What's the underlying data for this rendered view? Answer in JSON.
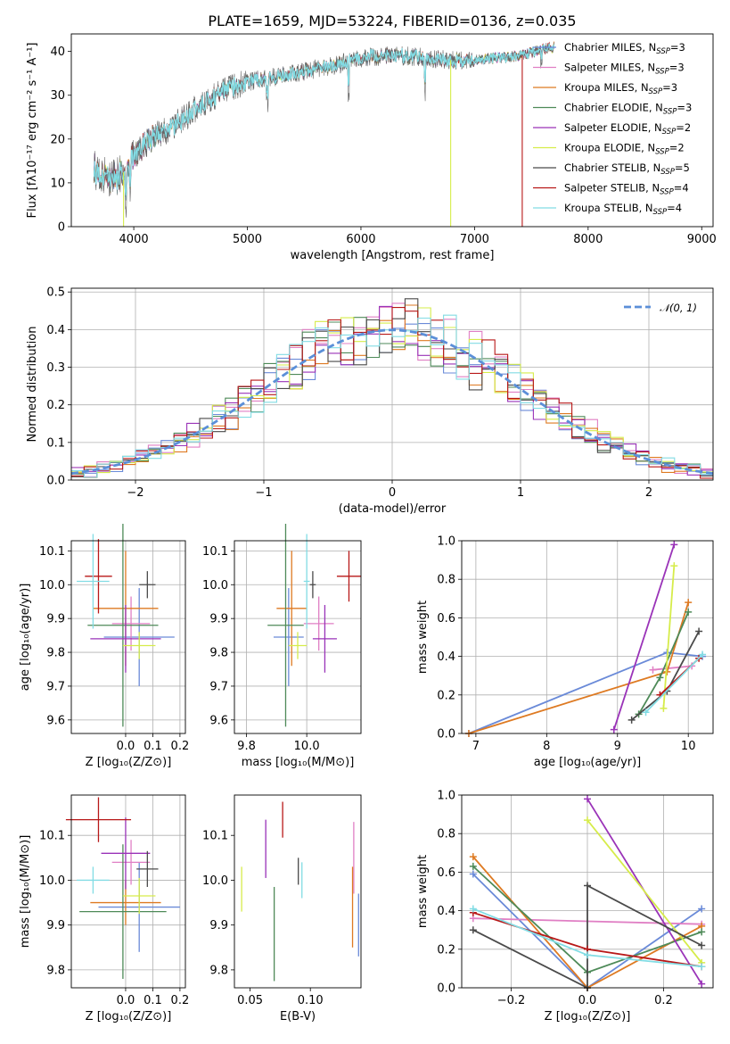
{
  "figure_title": "PLATE=1659, MJD=53224, FIBERID=0136, z=0.035",
  "colors": {
    "Chabrier MILES": "#6a8ad8",
    "Salpeter MILES": "#e07fc4",
    "Kroupa MILES": "#de7a22",
    "Chabrier ELODIE": "#4e8a58",
    "Salpeter ELODIE": "#9a33b8",
    "Kroupa ELODIE": "#d6ec4a",
    "Chabrier STELIB": "#4a4a4a",
    "Salpeter STELIB": "#b81818",
    "Kroupa STELIB": "#82dce4",
    "normal": "#5b8fd8"
  },
  "models": [
    "Chabrier MILES",
    "Salpeter MILES",
    "Kroupa MILES",
    "Chabrier ELODIE",
    "Salpeter ELODIE",
    "Kroupa ELODIE",
    "Chabrier STELIB",
    "Salpeter STELIB",
    "Kroupa STELIB"
  ],
  "chart_data": [
    {
      "id": "spectrum",
      "type": "line",
      "title": "PLATE=1659, MJD=53224, FIBERID=0136, z=0.035",
      "xlabel": "wavelength [Angstrom, rest frame]",
      "ylabel": "Flux [fλ10⁻¹⁷ erg cm⁻² s⁻¹ A⁻¹]",
      "xlim": [
        3450,
        9100
      ],
      "ylim": [
        0,
        44
      ],
      "xticks": [
        4000,
        5000,
        6000,
        7000,
        8000,
        9000
      ],
      "yticks": [
        0,
        10,
        20,
        30,
        40
      ],
      "grid": false,
      "legend_position": "right",
      "legend": [
        {
          "name": "Chabrier MILES",
          "nssp": "3"
        },
        {
          "name": "Salpeter MILES",
          "nssp": "3"
        },
        {
          "name": "Kroupa MILES",
          "nssp": "3"
        },
        {
          "name": "Chabrier ELODIE",
          "nssp": "3"
        },
        {
          "name": "Salpeter ELODIE",
          "nssp": "2"
        },
        {
          "name": "Kroupa ELODIE",
          "nssp": "2"
        },
        {
          "name": "Chabrier STELIB",
          "nssp": "5"
        },
        {
          "name": "Salpeter STELIB",
          "nssp": "4"
        },
        {
          "name": "Kroupa STELIB",
          "nssp": "4"
        }
      ],
      "continuum": {
        "x": [
          3650,
          3800,
          3900,
          4000,
          4100,
          4200,
          4300,
          4400,
          4500,
          4600,
          4800,
          5000,
          5200,
          5400,
          5600,
          5800,
          6000,
          6200,
          6400,
          6600,
          6800,
          7000,
          7200,
          7400,
          7600,
          7700
        ],
        "y": [
          13,
          11,
          12,
          16,
          19,
          21,
          22,
          24,
          26,
          28,
          31,
          33,
          34,
          35,
          36,
          37,
          38.5,
          39,
          39,
          38.5,
          38,
          38,
          38.5,
          39,
          40.5,
          41
        ]
      },
      "dropouts": [
        {
          "model": "Kroupa ELODIE",
          "x": 6790
        },
        {
          "model": "Salpeter STELIB",
          "x": 7420
        },
        {
          "model": "Kroupa ELODIE",
          "x": 3910
        }
      ]
    },
    {
      "id": "residuals",
      "type": "histogram",
      "xlabel": "(data-model)/error",
      "ylabel": "Normed distribution",
      "xlim": [
        -2.5,
        2.5
      ],
      "ylim": [
        0,
        0.51
      ],
      "xticks": [
        -2,
        -1,
        0,
        1,
        2
      ],
      "yticks": [
        0.0,
        0.1,
        0.2,
        0.3,
        0.4,
        0.5
      ],
      "grid": true,
      "bin_width": 0.1,
      "legend": [
        {
          "name": "𝒩(0, 1)",
          "style": "dashed"
        }
      ],
      "legend_position": "top-right"
    },
    {
      "id": "age-vs-Z",
      "type": "errorbar",
      "xlabel": "Z [log₁₀(Z/Z⊙)]",
      "ylabel": "age  [log₁₀(age/yr)]",
      "xlim": [
        -0.2,
        0.22
      ],
      "ylim": [
        9.56,
        10.13
      ],
      "xticks": [
        0.0,
        0.1,
        0.2
      ],
      "yticks": [
        9.6,
        9.7,
        9.8,
        9.9,
        10.0,
        10.1
      ],
      "grid": true,
      "points": [
        {
          "model": "Chabrier MILES",
          "x": 0.05,
          "xerr": 0.13,
          "y": 9.845,
          "yerr": 0.145
        },
        {
          "model": "Salpeter MILES",
          "x": 0.02,
          "xerr": 0.07,
          "y": 9.885,
          "yerr": 0.08
        },
        {
          "model": "Kroupa MILES",
          "x": 0.0,
          "xerr": 0.12,
          "y": 9.93,
          "yerr": 0.17
        },
        {
          "model": "Chabrier ELODIE",
          "x": -0.01,
          "xerr": 0.13,
          "y": 9.88,
          "yerr": 0.3
        },
        {
          "model": "Salpeter ELODIE",
          "x": 0.0,
          "xerr": 0.13,
          "y": 9.84,
          "yerr": 0.1
        },
        {
          "model": "Kroupa ELODIE",
          "x": 0.05,
          "xerr": 0.06,
          "y": 9.82,
          "yerr": 0.04
        },
        {
          "model": "Chabrier STELIB",
          "x": 0.08,
          "xerr": 0.03,
          "y": 10.0,
          "yerr": 0.04
        },
        {
          "model": "Salpeter STELIB",
          "x": -0.1,
          "xerr": 0.05,
          "y": 10.025,
          "yerr": 0.11
        },
        {
          "model": "Kroupa STELIB",
          "x": -0.12,
          "xerr": 0.06,
          "y": 10.01,
          "yerr": 0.14
        }
      ]
    },
    {
      "id": "age-vs-mass",
      "type": "errorbar",
      "xlabel": "mass [log₁₀(M/M⊙)]",
      "ylabel": "",
      "xlim": [
        9.76,
        10.18
      ],
      "ylim": [
        9.56,
        10.13
      ],
      "xticks": [
        9.8,
        10.0
      ],
      "yticks": [
        9.6,
        9.7,
        9.8,
        9.9,
        10.0,
        10.1
      ],
      "grid": true,
      "points": [
        {
          "model": "Chabrier MILES",
          "x": 9.94,
          "xerr": 0.05,
          "y": 9.845,
          "yerr": 0.145
        },
        {
          "model": "Salpeter MILES",
          "x": 10.04,
          "xerr": 0.05,
          "y": 9.885,
          "yerr": 0.08
        },
        {
          "model": "Kroupa MILES",
          "x": 9.95,
          "xerr": 0.05,
          "y": 9.93,
          "yerr": 0.17
        },
        {
          "model": "Chabrier ELODIE",
          "x": 9.93,
          "xerr": 0.06,
          "y": 9.88,
          "yerr": 0.3
        },
        {
          "model": "Salpeter ELODIE",
          "x": 10.06,
          "xerr": 0.04,
          "y": 9.84,
          "yerr": 0.1
        },
        {
          "model": "Kroupa ELODIE",
          "x": 9.97,
          "xerr": 0.03,
          "y": 9.82,
          "yerr": 0.04
        },
        {
          "model": "Chabrier STELIB",
          "x": 10.02,
          "xerr": 0.01,
          "y": 10.0,
          "yerr": 0.04
        },
        {
          "model": "Salpeter STELIB",
          "x": 10.14,
          "xerr": 0.04,
          "y": 10.025,
          "yerr": 0.075
        },
        {
          "model": "Kroupa STELIB",
          "x": 10.0,
          "xerr": 0.01,
          "y": 10.01,
          "yerr": 0.14
        }
      ]
    },
    {
      "id": "weight-vs-age",
      "type": "line",
      "xlabel": "age  [log₁₀(age/yr)]",
      "ylabel": "mass weight",
      "xlim": [
        6.8,
        10.35
      ],
      "ylim": [
        0,
        1
      ],
      "xticks": [
        7,
        8,
        9,
        10
      ],
      "yticks": [
        0.0,
        0.2,
        0.4,
        0.6,
        0.8,
        1.0
      ],
      "grid": true,
      "series": [
        {
          "model": "Chabrier MILES",
          "x": [
            6.9,
            9.7,
            10.2
          ],
          "y": [
            0.0,
            0.42,
            0.4
          ]
        },
        {
          "model": "Salpeter MILES",
          "x": [
            9.5,
            10.05
          ],
          "y": [
            0.33,
            0.35
          ]
        },
        {
          "model": "Kroupa MILES",
          "x": [
            6.9,
            9.7,
            10.0
          ],
          "y": [
            0.0,
            0.32,
            0.68
          ]
        },
        {
          "model": "Chabrier ELODIE",
          "x": [
            9.3,
            9.6,
            10.0
          ],
          "y": [
            0.1,
            0.29,
            0.63
          ]
        },
        {
          "model": "Salpeter ELODIE",
          "x": [
            8.95,
            9.8
          ],
          "y": [
            0.02,
            0.98
          ]
        },
        {
          "model": "Kroupa ELODIE",
          "x": [
            9.65,
            9.8
          ],
          "y": [
            0.13,
            0.87
          ]
        },
        {
          "model": "Chabrier STELIB",
          "x": [
            9.2,
            9.7,
            10.15
          ],
          "y": [
            0.07,
            0.22,
            0.53
          ]
        },
        {
          "model": "Salpeter STELIB",
          "x": [
            9.6,
            10.15
          ],
          "y": [
            0.2,
            0.39
          ]
        },
        {
          "model": "Kroupa STELIB",
          "x": [
            9.4,
            10.2
          ],
          "y": [
            0.11,
            0.41
          ]
        }
      ]
    },
    {
      "id": "mass-vs-Z",
      "type": "errorbar",
      "xlabel": "Z [log₁₀(Z/Z⊙)]",
      "ylabel": "mass [log₁₀(M/M⊙)]",
      "xlim": [
        -0.2,
        0.22
      ],
      "ylim": [
        9.76,
        10.19
      ],
      "xticks": [
        0.0,
        0.1,
        0.2
      ],
      "yticks": [
        9.8,
        9.9,
        10.0,
        10.1
      ],
      "grid": true,
      "points": [
        {
          "model": "Chabrier MILES",
          "x": 0.05,
          "xerr": 0.15,
          "y": 9.94,
          "yerr": 0.1
        },
        {
          "model": "Salpeter MILES",
          "x": 0.02,
          "xerr": 0.07,
          "y": 10.04,
          "yerr": 0.05
        },
        {
          "model": "Kroupa MILES",
          "x": 0.0,
          "xerr": 0.13,
          "y": 9.95,
          "yerr": 0.05
        },
        {
          "model": "Chabrier ELODIE",
          "x": -0.01,
          "xerr": 0.16,
          "y": 9.93,
          "yerr": 0.15
        },
        {
          "model": "Salpeter ELODIE",
          "x": 0.0,
          "xerr": 0.09,
          "y": 10.06,
          "yerr": 0.08
        },
        {
          "model": "Kroupa ELODIE",
          "x": 0.05,
          "xerr": 0.06,
          "y": 9.965,
          "yerr": 0.04
        },
        {
          "model": "Chabrier STELIB",
          "x": 0.08,
          "xerr": 0.04,
          "y": 10.025,
          "yerr": 0.04
        },
        {
          "model": "Salpeter STELIB",
          "x": -0.1,
          "xerr": 0.12,
          "y": 10.135,
          "yerr": 0.05
        },
        {
          "model": "Kroupa STELIB",
          "x": -0.12,
          "xerr": 0.06,
          "y": 10.0,
          "yerr": 0.03
        }
      ]
    },
    {
      "id": "mass-vs-EBV",
      "type": "errorbar",
      "xlabel": "E(B-V)",
      "ylabel": "",
      "xlim": [
        0.037,
        0.142
      ],
      "ylim": [
        9.76,
        10.19
      ],
      "xticks": [
        0.05,
        0.1
      ],
      "yticks": [
        9.8,
        9.9,
        10.0,
        10.1
      ],
      "grid": false,
      "points": [
        {
          "model": "Chabrier MILES",
          "x": 0.14,
          "y": 9.9,
          "yerr": 0.07
        },
        {
          "model": "Salpeter MILES",
          "x": 0.136,
          "y": 10.05,
          "yerr": 0.08
        },
        {
          "model": "Kroupa MILES",
          "x": 0.135,
          "y": 9.94,
          "yerr": 0.09
        },
        {
          "model": "Chabrier ELODIE",
          "x": 0.07,
          "y": 9.88,
          "yerr": 0.105
        },
        {
          "model": "Salpeter ELODIE",
          "x": 0.063,
          "y": 10.07,
          "yerr": 0.065
        },
        {
          "model": "Kroupa ELODIE",
          "x": 0.043,
          "y": 9.98,
          "yerr": 0.05
        },
        {
          "model": "Chabrier STELIB",
          "x": 0.09,
          "y": 10.02,
          "yerr": 0.03
        },
        {
          "model": "Salpeter STELIB",
          "x": 0.077,
          "y": 10.135,
          "yerr": 0.04
        },
        {
          "model": "Kroupa STELIB",
          "x": 0.093,
          "y": 10.0,
          "yerr": 0.04
        }
      ]
    },
    {
      "id": "weight-vs-Z",
      "type": "line",
      "xlabel": "Z [log₁₀(Z/Z⊙)]",
      "ylabel": "mass weight",
      "xlim": [
        -0.33,
        0.33
      ],
      "ylim": [
        0,
        1
      ],
      "xticks": [
        -0.2,
        0.0,
        0.2
      ],
      "yticks": [
        0.0,
        0.2,
        0.4,
        0.6,
        0.8,
        1.0
      ],
      "grid": true,
      "series": [
        {
          "model": "Chabrier MILES",
          "x": [
            -0.3,
            0.0,
            0.3
          ],
          "y": [
            0.59,
            0.0,
            0.41
          ]
        },
        {
          "model": "Salpeter MILES",
          "x": [
            -0.3,
            0.3
          ],
          "y": [
            0.36,
            0.33
          ]
        },
        {
          "model": "Kroupa MILES",
          "x": [
            -0.3,
            0.0,
            0.3
          ],
          "y": [
            0.68,
            0.0,
            0.32
          ]
        },
        {
          "model": "Chabrier ELODIE",
          "x": [
            -0.3,
            0.0,
            0.3
          ],
          "y": [
            0.63,
            0.08,
            0.29
          ]
        },
        {
          "model": "Salpeter ELODIE",
          "x": [
            0.0,
            0.3
          ],
          "y": [
            0.98,
            0.02
          ]
        },
        {
          "model": "Kroupa ELODIE",
          "x": [
            0.0,
            0.3
          ],
          "y": [
            0.87,
            0.13
          ]
        },
        {
          "model": "Chabrier STELIB",
          "x": [
            -0.3,
            0.0,
            0.0,
            0.3
          ],
          "y": [
            0.3,
            0.0,
            0.53,
            0.22
          ]
        },
        {
          "model": "Salpeter STELIB",
          "x": [
            -0.3,
            0.0,
            0.3
          ],
          "y": [
            0.39,
            0.2,
            0.11
          ]
        },
        {
          "model": "Kroupa STELIB",
          "x": [
            -0.3,
            0.0,
            0.3
          ],
          "y": [
            0.41,
            0.17,
            0.11
          ]
        }
      ]
    }
  ]
}
